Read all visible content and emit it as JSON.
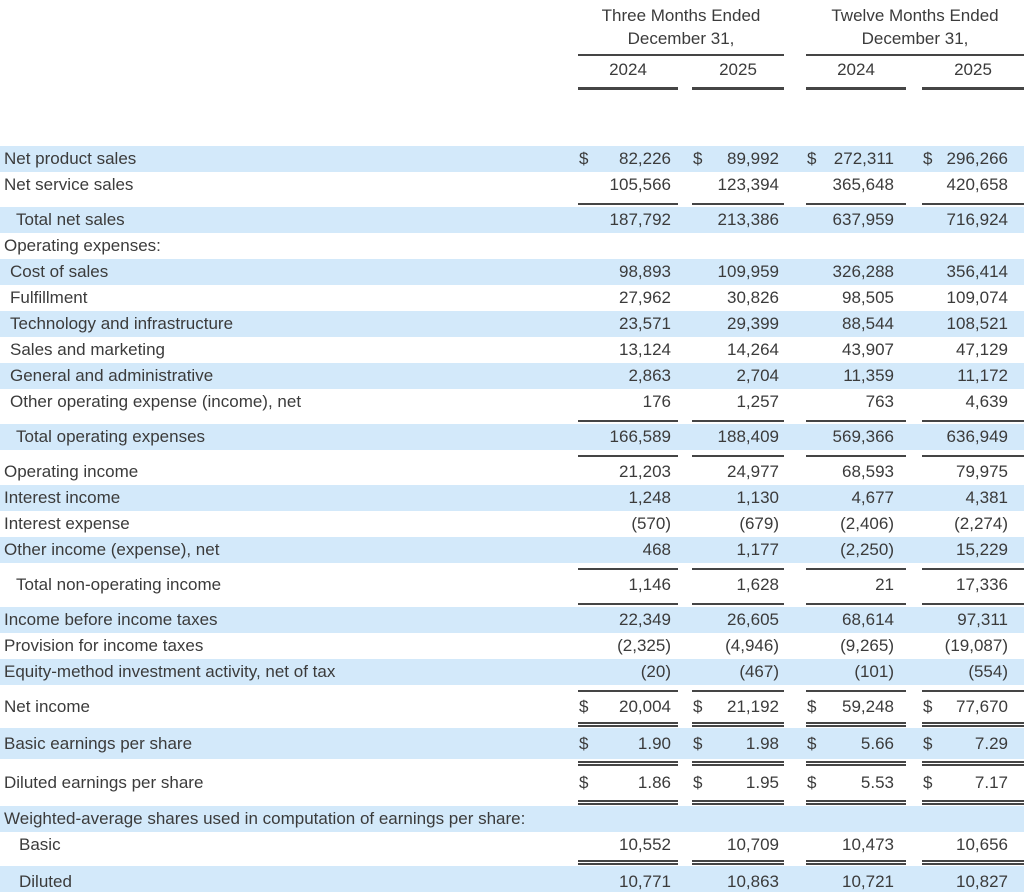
{
  "header": {
    "groups": [
      {
        "line1": "Three Months Ended",
        "line2": "December 31,",
        "years": [
          "2024",
          "2025"
        ]
      },
      {
        "line1": "Twelve Months Ended",
        "line2": "December 31,",
        "years": [
          "2024",
          "2025"
        ]
      }
    ]
  },
  "currency_symbol": "$",
  "colors": {
    "stripe": "#d3e9fa",
    "text": "#3b3b3b",
    "line": "#454545",
    "background": "#ffffff"
  },
  "rows": [
    {
      "label": "Net product sales",
      "indent": 0,
      "bg": "blue",
      "dollar": true,
      "tall": false,
      "values": [
        "82,226",
        "89,992",
        "272,311",
        "296,266"
      ],
      "rule_after": "none"
    },
    {
      "label": "Net service sales",
      "indent": 0,
      "bg": "white",
      "dollar": false,
      "tall": false,
      "values": [
        "105,566",
        "123,394",
        "365,648",
        "420,658"
      ],
      "rule_after": "single"
    },
    {
      "label": "Total net sales",
      "indent": 2,
      "bg": "blue",
      "dollar": false,
      "tall": false,
      "values": [
        "187,792",
        "213,386",
        "637,959",
        "716,924"
      ],
      "rule_after": "none"
    },
    {
      "label": "Operating expenses:",
      "indent": 0,
      "bg": "white",
      "dollar": false,
      "tall": false,
      "values": null,
      "rule_after": "none"
    },
    {
      "label": "Cost of sales",
      "indent": 1,
      "bg": "blue",
      "dollar": false,
      "tall": false,
      "values": [
        "98,893",
        "109,959",
        "326,288",
        "356,414"
      ],
      "rule_after": "none"
    },
    {
      "label": "Fulfillment",
      "indent": 1,
      "bg": "white",
      "dollar": false,
      "tall": false,
      "values": [
        "27,962",
        "30,826",
        "98,505",
        "109,074"
      ],
      "rule_after": "none"
    },
    {
      "label": "Technology and infrastructure",
      "indent": 1,
      "bg": "blue",
      "dollar": false,
      "tall": false,
      "values": [
        "23,571",
        "29,399",
        "88,544",
        "108,521"
      ],
      "rule_after": "none"
    },
    {
      "label": "Sales and marketing",
      "indent": 1,
      "bg": "white",
      "dollar": false,
      "tall": false,
      "values": [
        "13,124",
        "14,264",
        "43,907",
        "47,129"
      ],
      "rule_after": "none"
    },
    {
      "label": "General and administrative",
      "indent": 1,
      "bg": "blue",
      "dollar": false,
      "tall": false,
      "values": [
        "2,863",
        "2,704",
        "11,359",
        "11,172"
      ],
      "rule_after": "none"
    },
    {
      "label": "Other operating expense (income), net",
      "indent": 1,
      "bg": "white",
      "dollar": false,
      "tall": false,
      "values": [
        "176",
        "1,257",
        "763",
        "4,639"
      ],
      "rule_after": "single"
    },
    {
      "label": "Total operating expenses",
      "indent": 2,
      "bg": "blue",
      "dollar": false,
      "tall": false,
      "values": [
        "166,589",
        "188,409",
        "569,366",
        "636,949"
      ],
      "rule_after": "single"
    },
    {
      "label": "Operating income",
      "indent": 0,
      "bg": "white",
      "dollar": false,
      "tall": false,
      "values": [
        "21,203",
        "24,977",
        "68,593",
        "79,975"
      ],
      "rule_after": "none"
    },
    {
      "label": "Interest income",
      "indent": 0,
      "bg": "blue",
      "dollar": false,
      "tall": false,
      "values": [
        "1,248",
        "1,130",
        "4,677",
        "4,381"
      ],
      "rule_after": "none"
    },
    {
      "label": "Interest expense",
      "indent": 0,
      "bg": "white",
      "dollar": false,
      "tall": false,
      "values": [
        "(570)",
        "(679)",
        "(2,406)",
        "(2,274)"
      ],
      "rule_after": "none"
    },
    {
      "label": "Other income (expense), net",
      "indent": 0,
      "bg": "blue",
      "dollar": false,
      "tall": false,
      "values": [
        "468",
        "1,177",
        "(2,250)",
        "15,229"
      ],
      "rule_after": "single"
    },
    {
      "label": "Total non-operating income",
      "indent": 2,
      "bg": "white",
      "dollar": false,
      "tall": false,
      "values": [
        "1,146",
        "1,628",
        "21",
        "17,336"
      ],
      "rule_after": "single"
    },
    {
      "label": "Income before income taxes",
      "indent": 0,
      "bg": "blue",
      "dollar": false,
      "tall": false,
      "values": [
        "22,349",
        "26,605",
        "68,614",
        "97,311"
      ],
      "rule_after": "none"
    },
    {
      "label": "Provision for income taxes",
      "indent": 0,
      "bg": "white",
      "dollar": false,
      "tall": false,
      "values": [
        "(2,325)",
        "(4,946)",
        "(9,265)",
        "(19,087)"
      ],
      "rule_after": "none"
    },
    {
      "label": "Equity-method investment activity, net of tax",
      "indent": 0,
      "bg": "blue",
      "dollar": false,
      "tall": false,
      "values": [
        "(20)",
        "(467)",
        "(101)",
        "(554)"
      ],
      "rule_after": "single"
    },
    {
      "label": "Net income",
      "indent": 0,
      "bg": "white",
      "dollar": true,
      "tall": false,
      "values": [
        "20,004",
        "21,192",
        "59,248",
        "77,670"
      ],
      "rule_after": "double"
    },
    {
      "label": "Basic earnings per share",
      "indent": 0,
      "bg": "blue",
      "dollar": true,
      "tall": true,
      "values": [
        "1.90",
        "1.98",
        "5.66",
        "7.29"
      ],
      "rule_after": "double"
    },
    {
      "label": "Diluted earnings per share",
      "indent": 0,
      "bg": "white",
      "dollar": true,
      "tall": true,
      "values": [
        "1.86",
        "1.95",
        "5.53",
        "7.17"
      ],
      "rule_after": "double"
    },
    {
      "label": "Weighted-average shares used in computation of earnings per share:",
      "indent": 0,
      "bg": "blue",
      "dollar": false,
      "tall": false,
      "values": null,
      "rule_after": "none"
    },
    {
      "label": "Basic",
      "indent": 3,
      "bg": "white",
      "dollar": false,
      "tall": false,
      "values": [
        "10,552",
        "10,709",
        "10,473",
        "10,656"
      ],
      "rule_after": "double"
    },
    {
      "label": "Diluted",
      "indent": 3,
      "bg": "blue",
      "dollar": false,
      "tall": true,
      "values": [
        "10,771",
        "10,863",
        "10,721",
        "10,827"
      ],
      "rule_after": "double"
    }
  ]
}
